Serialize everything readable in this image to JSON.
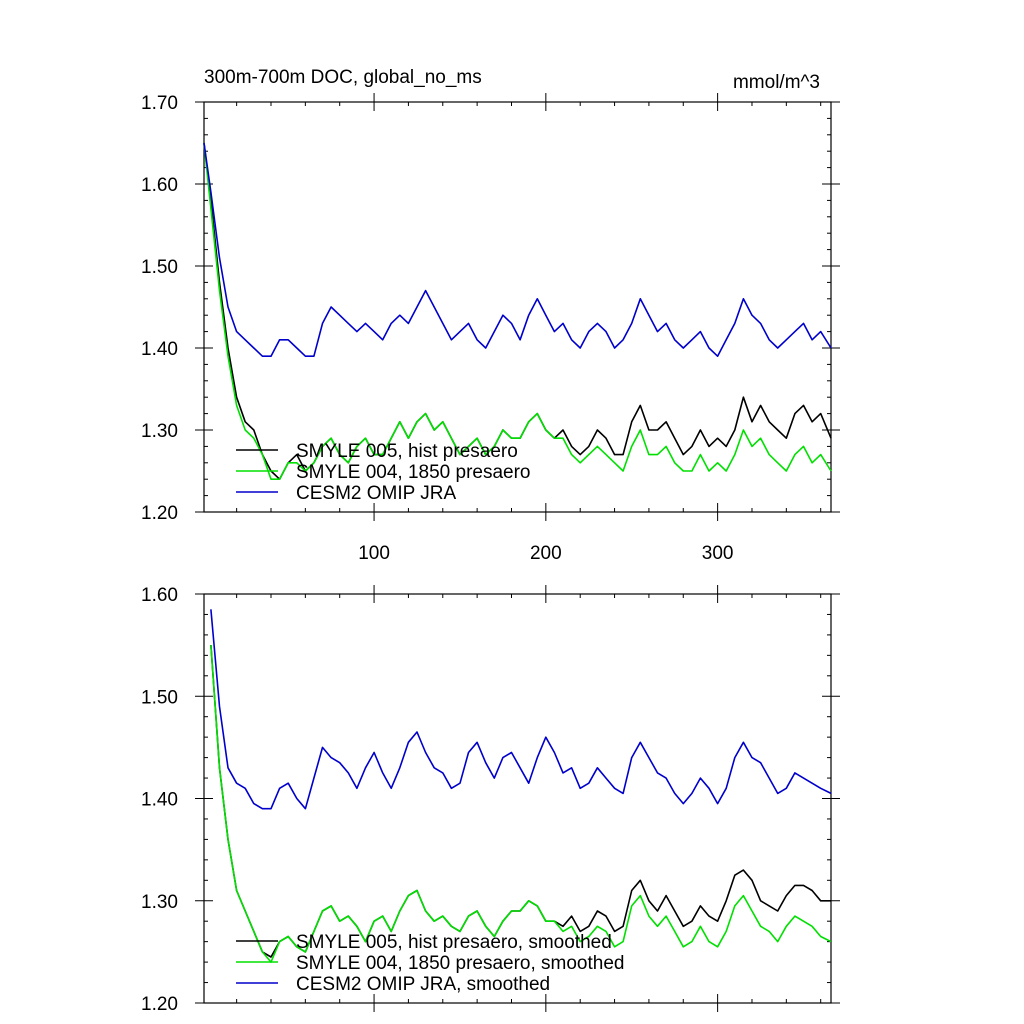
{
  "chart_data": [
    {
      "type": "line",
      "title": "300m-700m DOC, global_no_ms",
      "units": "mmol/m^3",
      "xlim": [
        1,
        366
      ],
      "ylim": [
        1.2,
        1.7
      ],
      "x_ticks": [
        100,
        200,
        300
      ],
      "y_ticks": [
        "1.20",
        "1.30",
        "1.40",
        "1.50",
        "1.60",
        "1.70"
      ],
      "legend_position": "lower-left",
      "series": [
        {
          "name": "SMYLE 005, hist presaero",
          "color": "#000000",
          "x": [
            1,
            5,
            10,
            15,
            20,
            25,
            30,
            35,
            40,
            45,
            50,
            55,
            60,
            65,
            70,
            75,
            80,
            85,
            90,
            95,
            100,
            105,
            110,
            115,
            120,
            125,
            130,
            135,
            140,
            145,
            150,
            155,
            160,
            165,
            170,
            175,
            180,
            185,
            190,
            195,
            200,
            205,
            210,
            215,
            220,
            225,
            230,
            235,
            240,
            245,
            250,
            255,
            260,
            265,
            270,
            275,
            280,
            285,
            290,
            295,
            300,
            305,
            310,
            315,
            320,
            325,
            330,
            335,
            340,
            345,
            350,
            355,
            360,
            366
          ],
          "y": [
            1.65,
            1.58,
            1.48,
            1.4,
            1.34,
            1.31,
            1.3,
            1.27,
            1.25,
            1.24,
            1.26,
            1.27,
            1.25,
            1.26,
            1.28,
            1.29,
            1.27,
            1.26,
            1.28,
            1.29,
            1.27,
            1.27,
            1.29,
            1.31,
            1.29,
            1.31,
            1.32,
            1.3,
            1.31,
            1.29,
            1.27,
            1.28,
            1.29,
            1.27,
            1.28,
            1.3,
            1.29,
            1.29,
            1.31,
            1.32,
            1.3,
            1.29,
            1.3,
            1.28,
            1.27,
            1.28,
            1.3,
            1.29,
            1.27,
            1.27,
            1.31,
            1.33,
            1.3,
            1.3,
            1.31,
            1.29,
            1.27,
            1.28,
            1.3,
            1.28,
            1.29,
            1.28,
            1.3,
            1.34,
            1.31,
            1.33,
            1.31,
            1.3,
            1.29,
            1.32,
            1.33,
            1.31,
            1.32,
            1.29
          ]
        },
        {
          "name": "SMYLE 004, 1850 presaero",
          "color": "#00e000",
          "x": [
            1,
            5,
            10,
            15,
            20,
            25,
            30,
            35,
            40,
            45,
            50,
            55,
            60,
            65,
            70,
            75,
            80,
            85,
            90,
            95,
            100,
            105,
            110,
            115,
            120,
            125,
            130,
            135,
            140,
            145,
            150,
            155,
            160,
            165,
            170,
            175,
            180,
            185,
            190,
            195,
            200,
            205,
            210,
            215,
            220,
            225,
            230,
            235,
            240,
            245,
            250,
            255,
            260,
            265,
            270,
            275,
            280,
            285,
            290,
            295,
            300,
            305,
            310,
            315,
            320,
            325,
            330,
            335,
            340,
            345,
            350,
            355,
            360,
            366
          ],
          "y": [
            1.65,
            1.57,
            1.47,
            1.39,
            1.33,
            1.3,
            1.29,
            1.27,
            1.24,
            1.24,
            1.26,
            1.26,
            1.25,
            1.26,
            1.28,
            1.29,
            1.27,
            1.26,
            1.28,
            1.29,
            1.27,
            1.27,
            1.29,
            1.31,
            1.29,
            1.31,
            1.32,
            1.3,
            1.31,
            1.29,
            1.27,
            1.28,
            1.29,
            1.27,
            1.28,
            1.3,
            1.29,
            1.29,
            1.31,
            1.32,
            1.3,
            1.29,
            1.29,
            1.27,
            1.26,
            1.27,
            1.28,
            1.27,
            1.26,
            1.25,
            1.28,
            1.3,
            1.27,
            1.27,
            1.28,
            1.26,
            1.25,
            1.25,
            1.27,
            1.25,
            1.26,
            1.25,
            1.27,
            1.3,
            1.28,
            1.29,
            1.27,
            1.26,
            1.25,
            1.27,
            1.28,
            1.26,
            1.27,
            1.25
          ]
        },
        {
          "name": "CESM2 OMIP JRA",
          "color": "#0000cc",
          "x": [
            1,
            5,
            10,
            15,
            20,
            25,
            30,
            35,
            40,
            45,
            50,
            55,
            60,
            65,
            70,
            75,
            80,
            85,
            90,
            95,
            100,
            105,
            110,
            115,
            120,
            125,
            130,
            135,
            140,
            145,
            150,
            155,
            160,
            165,
            170,
            175,
            180,
            185,
            190,
            195,
            200,
            205,
            210,
            215,
            220,
            225,
            230,
            235,
            240,
            245,
            250,
            255,
            260,
            265,
            270,
            275,
            280,
            285,
            290,
            295,
            300,
            305,
            310,
            315,
            320,
            325,
            330,
            335,
            340,
            345,
            350,
            355,
            360,
            366
          ],
          "y": [
            1.65,
            1.59,
            1.51,
            1.45,
            1.42,
            1.41,
            1.4,
            1.39,
            1.39,
            1.41,
            1.41,
            1.4,
            1.39,
            1.39,
            1.43,
            1.45,
            1.44,
            1.43,
            1.42,
            1.43,
            1.42,
            1.41,
            1.43,
            1.44,
            1.43,
            1.45,
            1.47,
            1.45,
            1.43,
            1.41,
            1.42,
            1.43,
            1.41,
            1.4,
            1.42,
            1.44,
            1.43,
            1.41,
            1.44,
            1.46,
            1.44,
            1.42,
            1.43,
            1.41,
            1.4,
            1.42,
            1.43,
            1.42,
            1.4,
            1.41,
            1.43,
            1.46,
            1.44,
            1.42,
            1.43,
            1.41,
            1.4,
            1.41,
            1.42,
            1.4,
            1.39,
            1.41,
            1.43,
            1.46,
            1.44,
            1.43,
            1.41,
            1.4,
            1.41,
            1.42,
            1.43,
            1.41,
            1.42,
            1.4
          ]
        }
      ]
    },
    {
      "type": "line",
      "xlim": [
        1,
        366
      ],
      "ylim": [
        1.2,
        1.6
      ],
      "y_ticks": [
        "1.20",
        "1.30",
        "1.40",
        "1.50",
        "1.60"
      ],
      "legend_position": "lower-left",
      "series": [
        {
          "name": "SMYLE 005, hist presaero, smoothed",
          "color": "#000000",
          "x": [
            5,
            10,
            15,
            20,
            25,
            30,
            35,
            40,
            45,
            50,
            55,
            60,
            65,
            70,
            75,
            80,
            85,
            90,
            95,
            100,
            105,
            110,
            115,
            120,
            125,
            130,
            135,
            140,
            145,
            150,
            155,
            160,
            165,
            170,
            175,
            180,
            185,
            190,
            195,
            200,
            205,
            210,
            215,
            220,
            225,
            230,
            235,
            240,
            245,
            250,
            255,
            260,
            265,
            270,
            275,
            280,
            285,
            290,
            295,
            300,
            305,
            310,
            315,
            320,
            325,
            330,
            335,
            340,
            345,
            350,
            355,
            360,
            366
          ],
          "y": [
            1.55,
            1.43,
            1.36,
            1.31,
            1.29,
            1.27,
            1.25,
            1.245,
            1.26,
            1.265,
            1.255,
            1.25,
            1.27,
            1.29,
            1.295,
            1.28,
            1.285,
            1.275,
            1.26,
            1.28,
            1.285,
            1.27,
            1.29,
            1.305,
            1.31,
            1.29,
            1.28,
            1.285,
            1.275,
            1.27,
            1.285,
            1.29,
            1.275,
            1.265,
            1.28,
            1.29,
            1.29,
            1.3,
            1.295,
            1.28,
            1.28,
            1.275,
            1.285,
            1.27,
            1.275,
            1.29,
            1.285,
            1.27,
            1.275,
            1.31,
            1.32,
            1.3,
            1.29,
            1.305,
            1.29,
            1.275,
            1.28,
            1.295,
            1.285,
            1.28,
            1.3,
            1.325,
            1.33,
            1.32,
            1.3,
            1.295,
            1.29,
            1.305,
            1.315,
            1.315,
            1.31,
            1.3,
            1.3
          ]
        },
        {
          "name": "SMYLE 004, 1850 presaero, smoothed",
          "color": "#00e000",
          "x": [
            5,
            10,
            15,
            20,
            25,
            30,
            35,
            40,
            45,
            50,
            55,
            60,
            65,
            70,
            75,
            80,
            85,
            90,
            95,
            100,
            105,
            110,
            115,
            120,
            125,
            130,
            135,
            140,
            145,
            150,
            155,
            160,
            165,
            170,
            175,
            180,
            185,
            190,
            195,
            200,
            205,
            210,
            215,
            220,
            225,
            230,
            235,
            240,
            245,
            250,
            255,
            260,
            265,
            270,
            275,
            280,
            285,
            290,
            295,
            300,
            305,
            310,
            315,
            320,
            325,
            330,
            335,
            340,
            345,
            350,
            355,
            360,
            366
          ],
          "y": [
            1.55,
            1.43,
            1.36,
            1.31,
            1.29,
            1.27,
            1.25,
            1.24,
            1.26,
            1.265,
            1.255,
            1.25,
            1.27,
            1.29,
            1.295,
            1.28,
            1.285,
            1.275,
            1.26,
            1.28,
            1.285,
            1.27,
            1.29,
            1.305,
            1.31,
            1.29,
            1.28,
            1.285,
            1.275,
            1.27,
            1.285,
            1.29,
            1.275,
            1.265,
            1.28,
            1.29,
            1.29,
            1.3,
            1.295,
            1.28,
            1.28,
            1.27,
            1.275,
            1.26,
            1.265,
            1.275,
            1.27,
            1.255,
            1.26,
            1.295,
            1.305,
            1.285,
            1.275,
            1.285,
            1.27,
            1.255,
            1.26,
            1.275,
            1.26,
            1.255,
            1.27,
            1.295,
            1.305,
            1.29,
            1.275,
            1.27,
            1.26,
            1.275,
            1.285,
            1.28,
            1.275,
            1.265,
            1.26
          ]
        },
        {
          "name": "CESM2 OMIP JRA, smoothed",
          "color": "#0000cc",
          "x": [
            5,
            10,
            15,
            20,
            25,
            30,
            35,
            40,
            45,
            50,
            55,
            60,
            65,
            70,
            75,
            80,
            85,
            90,
            95,
            100,
            105,
            110,
            115,
            120,
            125,
            130,
            135,
            140,
            145,
            150,
            155,
            160,
            165,
            170,
            175,
            180,
            185,
            190,
            195,
            200,
            205,
            210,
            215,
            220,
            225,
            230,
            235,
            240,
            245,
            250,
            255,
            260,
            265,
            270,
            275,
            280,
            285,
            290,
            295,
            300,
            305,
            310,
            315,
            320,
            325,
            330,
            335,
            340,
            345,
            350,
            355,
            360,
            366
          ],
          "y": [
            1.585,
            1.49,
            1.43,
            1.415,
            1.41,
            1.395,
            1.39,
            1.39,
            1.41,
            1.415,
            1.4,
            1.39,
            1.42,
            1.45,
            1.44,
            1.435,
            1.425,
            1.41,
            1.43,
            1.445,
            1.425,
            1.41,
            1.43,
            1.455,
            1.465,
            1.445,
            1.43,
            1.425,
            1.41,
            1.415,
            1.445,
            1.455,
            1.435,
            1.42,
            1.44,
            1.445,
            1.43,
            1.415,
            1.44,
            1.46,
            1.445,
            1.425,
            1.43,
            1.41,
            1.415,
            1.43,
            1.42,
            1.41,
            1.405,
            1.44,
            1.455,
            1.44,
            1.425,
            1.42,
            1.405,
            1.395,
            1.405,
            1.42,
            1.41,
            1.395,
            1.41,
            1.44,
            1.455,
            1.44,
            1.435,
            1.42,
            1.405,
            1.41,
            1.425,
            1.42,
            1.415,
            1.41,
            1.405
          ]
        }
      ]
    }
  ]
}
